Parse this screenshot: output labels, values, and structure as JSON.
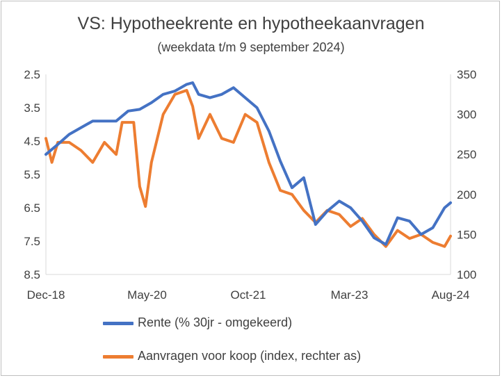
{
  "chart_data": {
    "type": "line",
    "title": "VS: Hypotheekrente en hypotheekaanvragen",
    "subtitle": "(weekdata t/m 9 september 2024)",
    "x_tick_labels": [
      "Dec-18",
      "May-20",
      "Oct-21",
      "Mar-23",
      "Aug-24"
    ],
    "y_left": {
      "ticks": [
        2.5,
        3.5,
        4.5,
        5.5,
        6.5,
        7.5,
        8.5
      ],
      "ylim": [
        2.5,
        8.5
      ],
      "inverted": true
    },
    "y_right": {
      "ticks": [
        350,
        300,
        250,
        200,
        150,
        100
      ],
      "ylim": [
        100,
        350
      ]
    },
    "grid": false,
    "legend_position": "bottom",
    "series": [
      {
        "name": "Rente (% 30jr - omgekeerd)",
        "axis": "left",
        "color": "#4472C4",
        "x": [
          "2018-12",
          "2019-02",
          "2019-04",
          "2019-06",
          "2019-08",
          "2019-10",
          "2019-12",
          "2020-02",
          "2020-04",
          "2020-06",
          "2020-08",
          "2020-10",
          "2020-12",
          "2021-01",
          "2021-02",
          "2021-04",
          "2021-06",
          "2021-08",
          "2021-10",
          "2021-12",
          "2022-02",
          "2022-04",
          "2022-06",
          "2022-08",
          "2022-10",
          "2022-12",
          "2023-02",
          "2023-04",
          "2023-06",
          "2023-08",
          "2023-10",
          "2023-12",
          "2024-02",
          "2024-04",
          "2024-06",
          "2024-08",
          "2024-09"
        ],
        "values": [
          4.9,
          4.6,
          4.3,
          4.1,
          3.9,
          3.9,
          3.9,
          3.6,
          3.55,
          3.35,
          3.1,
          3.0,
          2.8,
          2.75,
          3.1,
          3.2,
          3.1,
          2.9,
          3.2,
          3.5,
          4.2,
          5.1,
          5.9,
          5.6,
          7.0,
          6.6,
          6.3,
          6.5,
          6.9,
          7.4,
          7.6,
          6.8,
          6.9,
          7.3,
          7.1,
          6.5,
          6.35
        ]
      },
      {
        "name": "Aanvragen voor koop (index, rechter as)",
        "axis": "right",
        "color": "#ED7D31",
        "x": [
          "2018-12",
          "2019-01",
          "2019-02",
          "2019-04",
          "2019-06",
          "2019-08",
          "2019-10",
          "2019-12",
          "2020-01",
          "2020-03",
          "2020-04",
          "2020-05",
          "2020-06",
          "2020-08",
          "2020-10",
          "2020-12",
          "2021-01",
          "2021-02",
          "2021-04",
          "2021-06",
          "2021-08",
          "2021-10",
          "2021-12",
          "2022-02",
          "2022-04",
          "2022-06",
          "2022-08",
          "2022-10",
          "2022-12",
          "2023-02",
          "2023-04",
          "2023-06",
          "2023-08",
          "2023-10",
          "2023-12",
          "2024-02",
          "2024-04",
          "2024-06",
          "2024-08",
          "2024-09"
        ],
        "values": [
          270,
          240,
          265,
          265,
          255,
          240,
          265,
          250,
          290,
          290,
          210,
          185,
          240,
          300,
          325,
          330,
          310,
          270,
          300,
          270,
          265,
          300,
          290,
          240,
          205,
          200,
          180,
          165,
          180,
          175,
          160,
          170,
          150,
          135,
          155,
          145,
          150,
          140,
          135,
          148
        ]
      }
    ]
  }
}
